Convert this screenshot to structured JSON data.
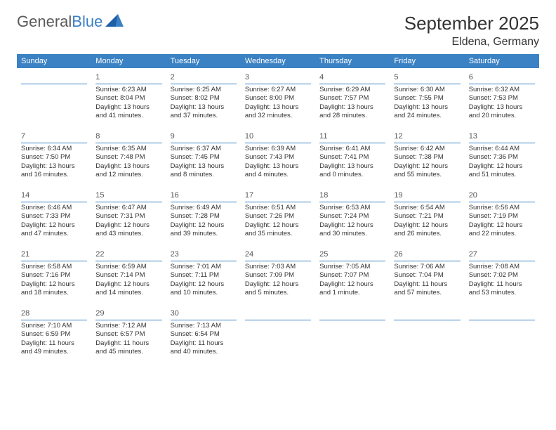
{
  "logo": {
    "text1": "General",
    "text2": "Blue"
  },
  "title": "September 2025",
  "location": "Eldena, Germany",
  "colors": {
    "header_bg": "#3b82c4",
    "header_text": "#ffffff",
    "rule": "#3b82c4",
    "body_text": "#333333",
    "logo_gray": "#5a5a5a",
    "logo_blue": "#3b7fc4",
    "background": "#ffffff"
  },
  "weekdays": [
    "Sunday",
    "Monday",
    "Tuesday",
    "Wednesday",
    "Thursday",
    "Friday",
    "Saturday"
  ],
  "weeks": [
    [
      null,
      {
        "n": "1",
        "sunrise": "Sunrise: 6:23 AM",
        "sunset": "Sunset: 8:04 PM",
        "day1": "Daylight: 13 hours",
        "day2": "and 41 minutes."
      },
      {
        "n": "2",
        "sunrise": "Sunrise: 6:25 AM",
        "sunset": "Sunset: 8:02 PM",
        "day1": "Daylight: 13 hours",
        "day2": "and 37 minutes."
      },
      {
        "n": "3",
        "sunrise": "Sunrise: 6:27 AM",
        "sunset": "Sunset: 8:00 PM",
        "day1": "Daylight: 13 hours",
        "day2": "and 32 minutes."
      },
      {
        "n": "4",
        "sunrise": "Sunrise: 6:29 AM",
        "sunset": "Sunset: 7:57 PM",
        "day1": "Daylight: 13 hours",
        "day2": "and 28 minutes."
      },
      {
        "n": "5",
        "sunrise": "Sunrise: 6:30 AM",
        "sunset": "Sunset: 7:55 PM",
        "day1": "Daylight: 13 hours",
        "day2": "and 24 minutes."
      },
      {
        "n": "6",
        "sunrise": "Sunrise: 6:32 AM",
        "sunset": "Sunset: 7:53 PM",
        "day1": "Daylight: 13 hours",
        "day2": "and 20 minutes."
      }
    ],
    [
      {
        "n": "7",
        "sunrise": "Sunrise: 6:34 AM",
        "sunset": "Sunset: 7:50 PM",
        "day1": "Daylight: 13 hours",
        "day2": "and 16 minutes."
      },
      {
        "n": "8",
        "sunrise": "Sunrise: 6:35 AM",
        "sunset": "Sunset: 7:48 PM",
        "day1": "Daylight: 13 hours",
        "day2": "and 12 minutes."
      },
      {
        "n": "9",
        "sunrise": "Sunrise: 6:37 AM",
        "sunset": "Sunset: 7:45 PM",
        "day1": "Daylight: 13 hours",
        "day2": "and 8 minutes."
      },
      {
        "n": "10",
        "sunrise": "Sunrise: 6:39 AM",
        "sunset": "Sunset: 7:43 PM",
        "day1": "Daylight: 13 hours",
        "day2": "and 4 minutes."
      },
      {
        "n": "11",
        "sunrise": "Sunrise: 6:41 AM",
        "sunset": "Sunset: 7:41 PM",
        "day1": "Daylight: 13 hours",
        "day2": "and 0 minutes."
      },
      {
        "n": "12",
        "sunrise": "Sunrise: 6:42 AM",
        "sunset": "Sunset: 7:38 PM",
        "day1": "Daylight: 12 hours",
        "day2": "and 55 minutes."
      },
      {
        "n": "13",
        "sunrise": "Sunrise: 6:44 AM",
        "sunset": "Sunset: 7:36 PM",
        "day1": "Daylight: 12 hours",
        "day2": "and 51 minutes."
      }
    ],
    [
      {
        "n": "14",
        "sunrise": "Sunrise: 6:46 AM",
        "sunset": "Sunset: 7:33 PM",
        "day1": "Daylight: 12 hours",
        "day2": "and 47 minutes."
      },
      {
        "n": "15",
        "sunrise": "Sunrise: 6:47 AM",
        "sunset": "Sunset: 7:31 PM",
        "day1": "Daylight: 12 hours",
        "day2": "and 43 minutes."
      },
      {
        "n": "16",
        "sunrise": "Sunrise: 6:49 AM",
        "sunset": "Sunset: 7:28 PM",
        "day1": "Daylight: 12 hours",
        "day2": "and 39 minutes."
      },
      {
        "n": "17",
        "sunrise": "Sunrise: 6:51 AM",
        "sunset": "Sunset: 7:26 PM",
        "day1": "Daylight: 12 hours",
        "day2": "and 35 minutes."
      },
      {
        "n": "18",
        "sunrise": "Sunrise: 6:53 AM",
        "sunset": "Sunset: 7:24 PM",
        "day1": "Daylight: 12 hours",
        "day2": "and 30 minutes."
      },
      {
        "n": "19",
        "sunrise": "Sunrise: 6:54 AM",
        "sunset": "Sunset: 7:21 PM",
        "day1": "Daylight: 12 hours",
        "day2": "and 26 minutes."
      },
      {
        "n": "20",
        "sunrise": "Sunrise: 6:56 AM",
        "sunset": "Sunset: 7:19 PM",
        "day1": "Daylight: 12 hours",
        "day2": "and 22 minutes."
      }
    ],
    [
      {
        "n": "21",
        "sunrise": "Sunrise: 6:58 AM",
        "sunset": "Sunset: 7:16 PM",
        "day1": "Daylight: 12 hours",
        "day2": "and 18 minutes."
      },
      {
        "n": "22",
        "sunrise": "Sunrise: 6:59 AM",
        "sunset": "Sunset: 7:14 PM",
        "day1": "Daylight: 12 hours",
        "day2": "and 14 minutes."
      },
      {
        "n": "23",
        "sunrise": "Sunrise: 7:01 AM",
        "sunset": "Sunset: 7:11 PM",
        "day1": "Daylight: 12 hours",
        "day2": "and 10 minutes."
      },
      {
        "n": "24",
        "sunrise": "Sunrise: 7:03 AM",
        "sunset": "Sunset: 7:09 PM",
        "day1": "Daylight: 12 hours",
        "day2": "and 5 minutes."
      },
      {
        "n": "25",
        "sunrise": "Sunrise: 7:05 AM",
        "sunset": "Sunset: 7:07 PM",
        "day1": "Daylight: 12 hours",
        "day2": "and 1 minute."
      },
      {
        "n": "26",
        "sunrise": "Sunrise: 7:06 AM",
        "sunset": "Sunset: 7:04 PM",
        "day1": "Daylight: 11 hours",
        "day2": "and 57 minutes."
      },
      {
        "n": "27",
        "sunrise": "Sunrise: 7:08 AM",
        "sunset": "Sunset: 7:02 PM",
        "day1": "Daylight: 11 hours",
        "day2": "and 53 minutes."
      }
    ],
    [
      {
        "n": "28",
        "sunrise": "Sunrise: 7:10 AM",
        "sunset": "Sunset: 6:59 PM",
        "day1": "Daylight: 11 hours",
        "day2": "and 49 minutes."
      },
      {
        "n": "29",
        "sunrise": "Sunrise: 7:12 AM",
        "sunset": "Sunset: 6:57 PM",
        "day1": "Daylight: 11 hours",
        "day2": "and 45 minutes."
      },
      {
        "n": "30",
        "sunrise": "Sunrise: 7:13 AM",
        "sunset": "Sunset: 6:54 PM",
        "day1": "Daylight: 11 hours",
        "day2": "and 40 minutes."
      },
      null,
      null,
      null,
      null
    ]
  ]
}
